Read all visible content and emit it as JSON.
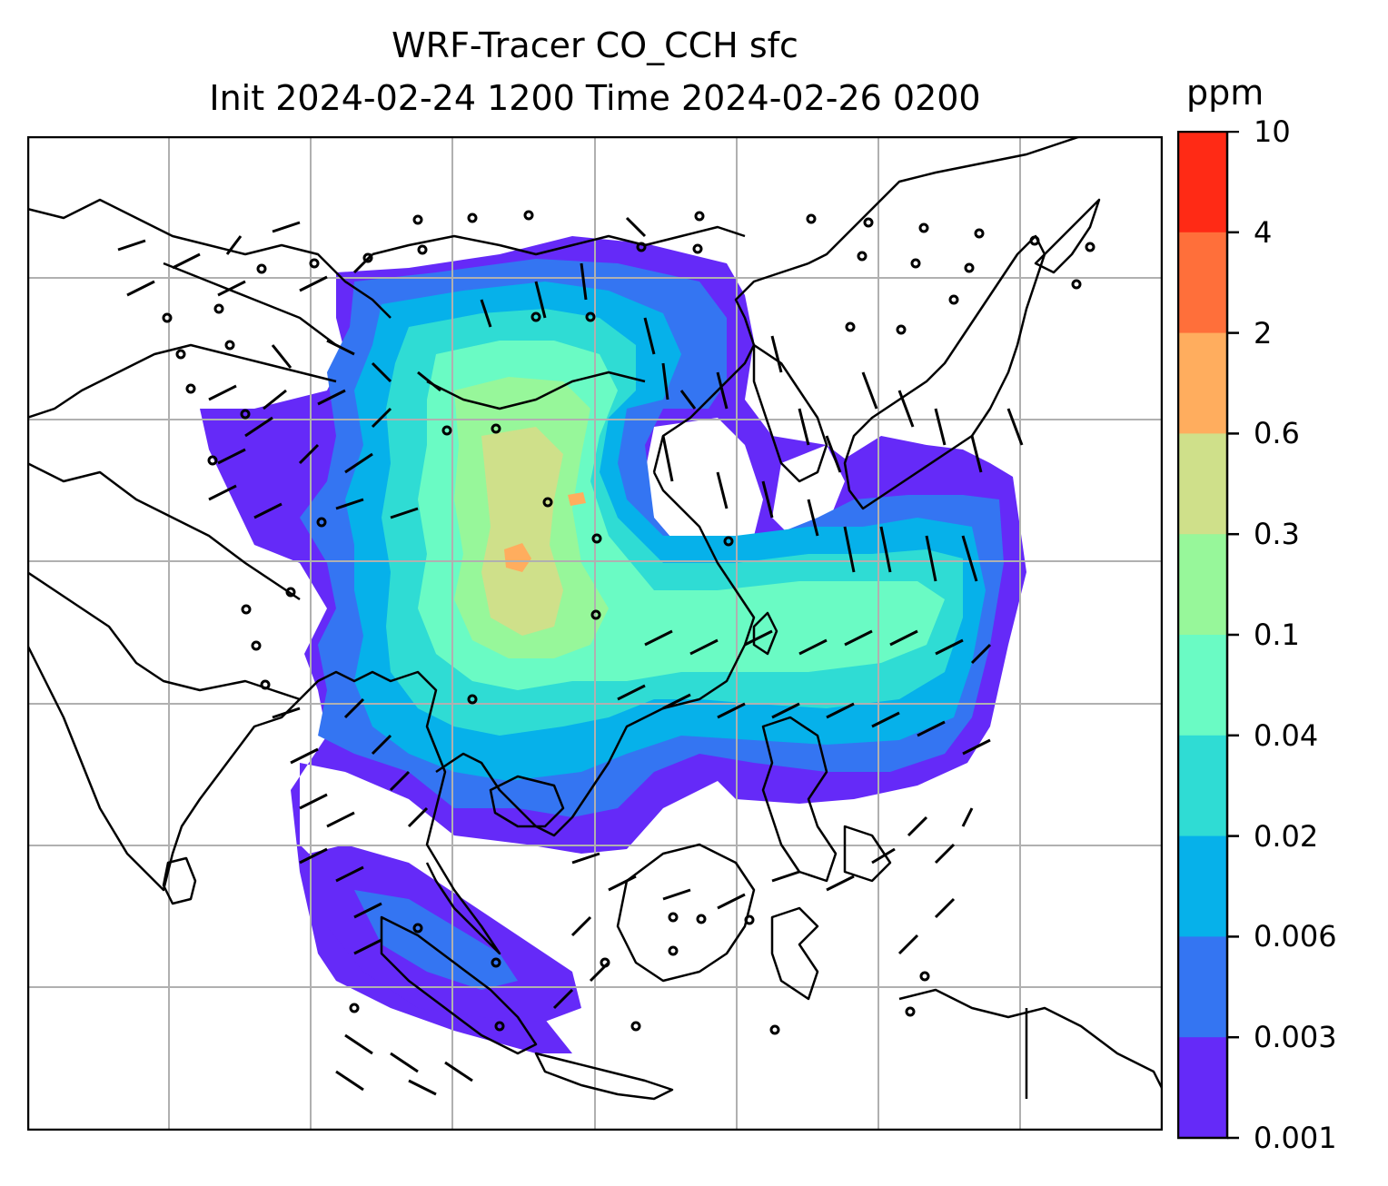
{
  "title": {
    "line1": "WRF-Tracer CO_CCH sfc",
    "line2": "Init 2024-02-24 1200 Time 2024-02-26 0200"
  },
  "colorbar": {
    "units": "ppm",
    "tick_labels": [
      "10",
      "4",
      "2",
      "0.6",
      "0.3",
      "0.1",
      "0.04",
      "0.02",
      "0.006",
      "0.003",
      "0.001"
    ],
    "band_colors": [
      "#ff2a15",
      "#ff6f3a",
      "#ffad5e",
      "#cfe08a",
      "#97f79a",
      "#6afbc4",
      "#2fdcd4",
      "#06b1ea",
      "#3475f2",
      "#652af8"
    ]
  },
  "map": {
    "gridlines": true,
    "coastline_color": "#000000",
    "grid_color": "#b0b0b0"
  }
}
